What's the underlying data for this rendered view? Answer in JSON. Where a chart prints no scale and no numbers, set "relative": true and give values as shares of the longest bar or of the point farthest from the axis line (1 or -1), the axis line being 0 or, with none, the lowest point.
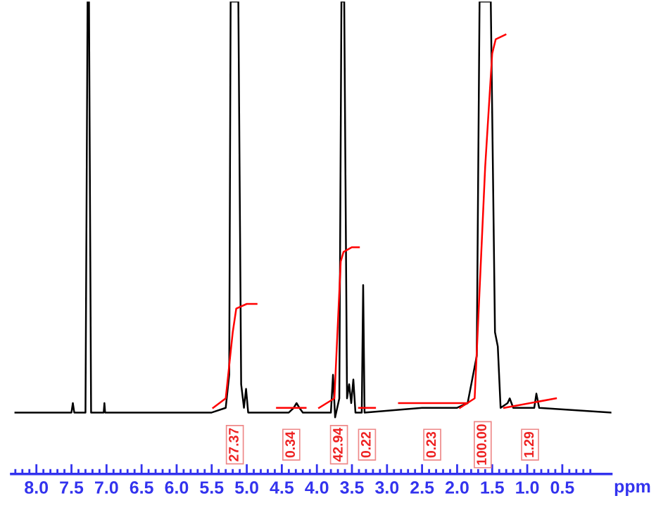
{
  "chart_data": {
    "type": "line",
    "relative": true,
    "xlabel": "ppm",
    "xlim": [
      8.36,
      -0.2
    ],
    "xticks": [
      {
        "value": 8.0,
        "label": "8.0"
      },
      {
        "value": 7.5,
        "label": "7.5"
      },
      {
        "value": 7.0,
        "label": "7.0"
      },
      {
        "value": 6.5,
        "label": "6.5"
      },
      {
        "value": 6.0,
        "label": "6.0"
      },
      {
        "value": 5.5,
        "label": "5.5"
      },
      {
        "value": 5.0,
        "label": "5.0"
      },
      {
        "value": 4.5,
        "label": "4.5"
      },
      {
        "value": 4.0,
        "label": "4.0"
      },
      {
        "value": 3.5,
        "label": "3.5"
      },
      {
        "value": 3.0,
        "label": "3.0"
      },
      {
        "value": 2.5,
        "label": "2.5"
      },
      {
        "value": 2.0,
        "label": "2.0"
      },
      {
        "value": 1.5,
        "label": "1.5"
      },
      {
        "value": 1.0,
        "label": "1.0"
      },
      {
        "value": 0.5,
        "label": "0.5"
      },
      {
        "value": 8.3,
        "label": null
      },
      {
        "value": 8.2,
        "label": null
      },
      {
        "value": 8.1,
        "label": null
      },
      {
        "value": 7.9,
        "label": null
      },
      {
        "value": 7.8,
        "label": null
      },
      {
        "value": 7.7,
        "label": null
      },
      {
        "value": 7.6,
        "label": null
      },
      {
        "value": 7.4,
        "label": null
      },
      {
        "value": 7.3,
        "label": null
      },
      {
        "value": 7.2,
        "label": null
      },
      {
        "value": 7.1,
        "label": null
      },
      {
        "value": 6.9,
        "label": null
      },
      {
        "value": 6.8,
        "label": null
      },
      {
        "value": 6.7,
        "label": null
      },
      {
        "value": 6.6,
        "label": null
      },
      {
        "value": 6.4,
        "label": null
      },
      {
        "value": 6.3,
        "label": null
      },
      {
        "value": 6.2,
        "label": null
      },
      {
        "value": 6.1,
        "label": null
      },
      {
        "value": 5.9,
        "label": null
      },
      {
        "value": 5.8,
        "label": null
      },
      {
        "value": 5.7,
        "label": null
      },
      {
        "value": 5.6,
        "label": null
      },
      {
        "value": 5.4,
        "label": null
      },
      {
        "value": 5.3,
        "label": null
      },
      {
        "value": 5.2,
        "label": null
      },
      {
        "value": 5.1,
        "label": null
      },
      {
        "value": 4.9,
        "label": null
      },
      {
        "value": 4.8,
        "label": null
      },
      {
        "value": 4.7,
        "label": null
      },
      {
        "value": 4.6,
        "label": null
      },
      {
        "value": 4.4,
        "label": null
      },
      {
        "value": 4.3,
        "label": null
      },
      {
        "value": 4.2,
        "label": null
      },
      {
        "value": 4.1,
        "label": null
      },
      {
        "value": 3.9,
        "label": null
      },
      {
        "value": 3.8,
        "label": null
      },
      {
        "value": 3.7,
        "label": null
      },
      {
        "value": 3.6,
        "label": null
      },
      {
        "value": 3.4,
        "label": null
      },
      {
        "value": 3.3,
        "label": null
      },
      {
        "value": 3.2,
        "label": null
      },
      {
        "value": 3.1,
        "label": null
      },
      {
        "value": 2.9,
        "label": null
      },
      {
        "value": 2.8,
        "label": null
      },
      {
        "value": 2.7,
        "label": null
      },
      {
        "value": 2.6,
        "label": null
      },
      {
        "value": 2.4,
        "label": null
      },
      {
        "value": 2.3,
        "label": null
      },
      {
        "value": 2.2,
        "label": null
      },
      {
        "value": 2.1,
        "label": null
      },
      {
        "value": 1.9,
        "label": null
      },
      {
        "value": 1.8,
        "label": null
      },
      {
        "value": 1.7,
        "label": null
      },
      {
        "value": 1.6,
        "label": null
      },
      {
        "value": 1.4,
        "label": null
      },
      {
        "value": 1.3,
        "label": null
      },
      {
        "value": 1.2,
        "label": null
      },
      {
        "value": 1.1,
        "label": null
      },
      {
        "value": 0.9,
        "label": null
      },
      {
        "value": 0.8,
        "label": null
      },
      {
        "value": 0.7,
        "label": null
      },
      {
        "value": 0.6,
        "label": null
      },
      {
        "value": 0.4,
        "label": null
      },
      {
        "value": 0.3,
        "label": null
      },
      {
        "value": 0.2,
        "label": null
      },
      {
        "value": 0.1,
        "label": null
      }
    ],
    "tick_labels": "x",
    "grid": false,
    "legend": false,
    "marker": "none",
    "line_style": "solid",
    "series": [
      {
        "color": "#000000",
        "x": [
          8.3,
          7.5,
          7.48,
          7.46,
          7.3,
          7.27,
          7.25,
          7.22,
          7.04,
          7.03,
          7.02,
          5.5,
          5.3,
          5.25,
          5.23,
          5.12,
          5.08,
          5.04,
          5.01,
          4.98,
          4.4,
          4.33,
          4.29,
          4.25,
          4.2,
          3.8,
          3.77,
          3.74,
          3.68,
          3.65,
          3.61,
          3.57,
          3.54,
          3.51,
          3.48,
          3.45,
          3.36,
          3.34,
          3.32,
          2.5,
          2.0,
          1.85,
          1.72,
          1.68,
          1.52,
          1.46,
          1.42,
          1.38,
          1.28,
          1.25,
          1.2,
          0.9,
          0.87,
          0.83,
          -0.2
        ],
        "values": [
          0.13,
          0.13,
          0.15,
          0.13,
          0.13,
          1,
          1,
          0.13,
          0.13,
          0.15,
          0.13,
          0.13,
          0.14,
          0.21,
          1,
          1,
          0.19,
          0.14,
          0.18,
          0.13,
          0.13,
          0.14,
          0.15,
          0.14,
          0.13,
          0.13,
          0.21,
          0.12,
          0.16,
          1,
          1,
          0.16,
          0.19,
          0.15,
          0.2,
          0.13,
          0.13,
          0.4,
          0.13,
          0.14,
          0.14,
          0.15,
          0.25,
          1,
          1,
          0.3,
          0.27,
          0.14,
          0.15,
          0.16,
          0.14,
          0.14,
          0.17,
          0.14,
          0.13
        ]
      },
      {
        "color": "#ff0000",
        "x": [
          5.48,
          5.3,
          5.2,
          5.15,
          5.0,
          4.86
        ],
        "values": [
          0.14,
          0.16,
          0.3,
          0.35,
          0.36,
          0.36
        ]
      },
      {
        "color": "#ff0000",
        "x": [
          4.57,
          4.16
        ],
        "values": [
          0.14,
          0.14
        ]
      },
      {
        "color": "#ff0000",
        "x": [
          3.97,
          3.75,
          3.66,
          3.62,
          3.5,
          3.4
        ],
        "values": [
          0.14,
          0.16,
          0.45,
          0.47,
          0.48,
          0.48
        ]
      },
      {
        "color": "#ff0000",
        "x": [
          3.4,
          3.17
        ],
        "values": [
          0.14,
          0.14
        ]
      },
      {
        "color": "#ff0000",
        "x": [
          2.83,
          1.88
        ],
        "values": [
          0.15,
          0.15
        ]
      },
      {
        "color": "#ff0000",
        "x": [
          1.96,
          1.75,
          1.6,
          1.5,
          1.45,
          1.31
        ],
        "values": [
          0.14,
          0.16,
          0.65,
          0.89,
          0.92,
          0.93
        ]
      },
      {
        "color": "#ff0000",
        "x": [
          1.33,
          0.59
        ],
        "values": [
          0.14,
          0.16
        ]
      }
    ],
    "annotations": [
      "27.37",
      "0.34",
      "42.94",
      "0.22",
      "0.23",
      "100.00",
      "1.29"
    ]
  }
}
